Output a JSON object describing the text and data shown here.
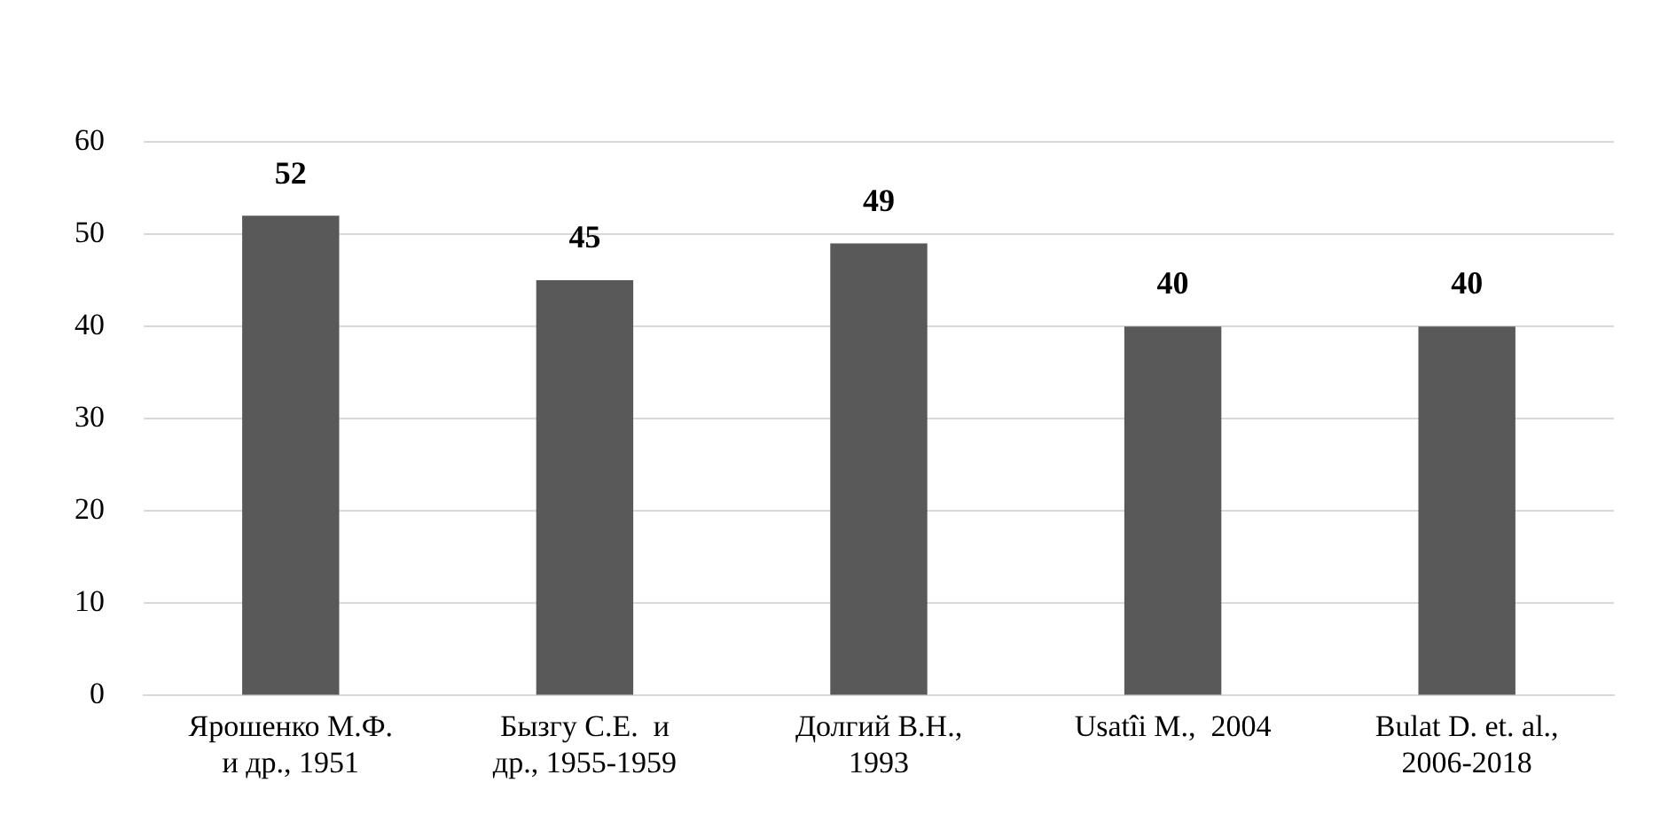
{
  "chart_data": {
    "type": "bar",
    "categories": [
      "Ярошенко М.Ф.\nи др., 1951",
      "Бызгу С.Е.  и\nдр., 1955-1959",
      "Долгий В.Н.,\n1993",
      "Usatîi M.,  2004",
      "Bulat D. et. al.,\n2006-2018"
    ],
    "values": [
      52,
      45,
      49,
      40,
      40
    ],
    "color": "#595959",
    "ylim": [
      0,
      60
    ],
    "yticks": [
      0,
      10,
      20,
      30,
      40,
      50,
      60
    ],
    "grid": "y",
    "data_labels": true
  }
}
